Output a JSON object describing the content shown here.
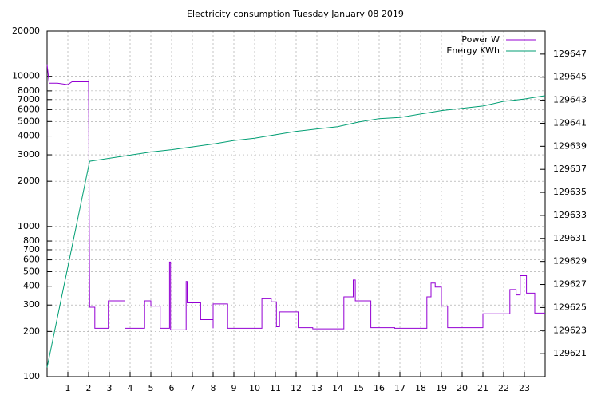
{
  "chart_data": {
    "type": "line",
    "title": "Electricity consumption Tuesday January 08 2019",
    "xlim": [
      0,
      24
    ],
    "xticks": [
      1,
      2,
      3,
      4,
      5,
      6,
      7,
      8,
      9,
      10,
      11,
      12,
      13,
      14,
      15,
      16,
      17,
      18,
      19,
      20,
      21,
      22,
      23
    ],
    "ylim": [
      100,
      20000
    ],
    "log_y": true,
    "yticks": [
      100,
      200,
      300,
      400,
      500,
      600,
      700,
      800,
      1000,
      2000,
      3000,
      4000,
      5000,
      6000,
      7000,
      8000,
      10000,
      20000
    ],
    "y2lim": [
      129619,
      129649
    ],
    "y2ticks": [
      129621,
      129623,
      129625,
      129627,
      129629,
      129631,
      129633,
      129635,
      129637,
      129639,
      129641,
      129643,
      129645,
      129647
    ],
    "grid": true,
    "legend": "top-right",
    "series": [
      {
        "name": "Power W",
        "color": "#9400d3",
        "x": [
          0,
          0.1,
          0.5,
          1,
          1.2,
          2.0,
          2.05,
          2.3,
          2.3,
          2.95,
          2.95,
          3.75,
          3.75,
          4.7,
          4.7,
          5.0,
          5.0,
          5.45,
          5.45,
          5.9,
          5.9,
          5.95,
          5.95,
          6.7,
          6.7,
          6.75,
          6.75,
          7.4,
          7.4,
          8.0,
          8.0,
          8.0,
          8.7,
          8.7,
          10.35,
          10.35,
          10.8,
          10.8,
          11.05,
          11.05,
          11.2,
          11.2,
          12.1,
          12.1,
          12.8,
          12.8,
          14.3,
          14.3,
          14.75,
          14.75,
          14.85,
          14.85,
          15.6,
          15.6,
          16.75,
          16.75,
          18.3,
          18.3,
          18.5,
          18.5,
          18.7,
          18.7,
          19.0,
          19.0,
          19.3,
          19.3,
          21.0,
          21.0,
          22.3,
          22.3,
          22.6,
          22.6,
          22.8,
          22.8,
          23.1,
          23.1,
          23.5,
          23.5,
          24
        ],
        "values": [
          12000,
          9000,
          9000,
          8800,
          9200,
          9200,
          290,
          290,
          210,
          210,
          320,
          320,
          210,
          210,
          320,
          320,
          295,
          295,
          210,
          210,
          580,
          580,
          205,
          205,
          430,
          430,
          310,
          310,
          240,
          240,
          210,
          305,
          305,
          210,
          210,
          330,
          330,
          315,
          315,
          215,
          215,
          270,
          270,
          212,
          212,
          208,
          208,
          340,
          340,
          440,
          440,
          320,
          320,
          212,
          212,
          210,
          210,
          340,
          340,
          420,
          420,
          395,
          395,
          295,
          295,
          212,
          212,
          262,
          262,
          380,
          380,
          350,
          350,
          470,
          470,
          360,
          360,
          265,
          265
        ]
      },
      {
        "name": "Energy KWh",
        "color": "#009e73",
        "axis": "y2",
        "x": [
          0,
          2.05,
          5,
          6,
          8,
          9,
          10,
          11,
          12,
          13,
          14,
          15,
          16,
          17,
          18,
          19,
          20,
          21,
          22,
          23,
          24
        ],
        "values": [
          129619.8,
          129637.7,
          129638.5,
          129638.7,
          129639.2,
          129639.5,
          129639.7,
          129640.0,
          129640.3,
          129640.5,
          129640.7,
          129641.1,
          129641.4,
          129641.5,
          129641.8,
          129642.1,
          129642.3,
          129642.5,
          129642.9,
          129643.1,
          129643.4
        ]
      }
    ]
  }
}
